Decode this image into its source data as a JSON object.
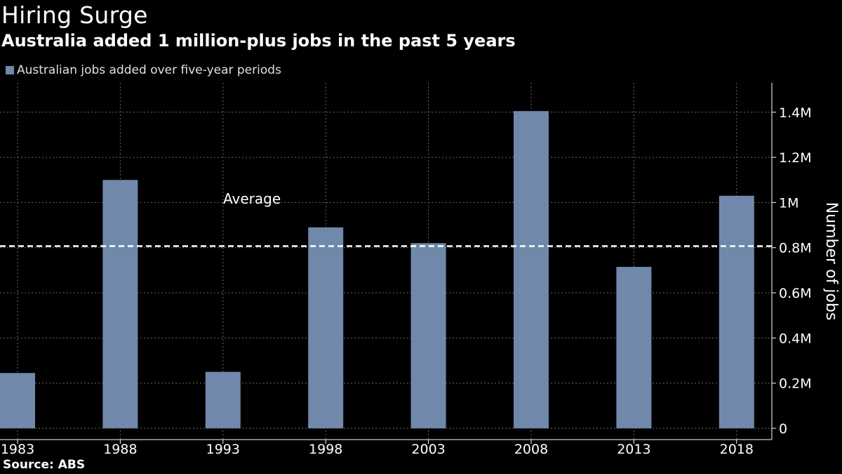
{
  "header": {
    "title": "Hiring Surge",
    "subtitle": "Australia added 1 million-plus jobs in the past 5 years"
  },
  "legend": {
    "label": "Australian jobs added over five-year periods",
    "color": "#7089ab"
  },
  "footer": {
    "source": "Source: ABS"
  },
  "chart_data": {
    "type": "bar",
    "title": "Hiring Surge",
    "subtitle": "Australia added 1 million-plus jobs in the past 5 years",
    "categories": [
      "1983",
      "1988",
      "1993",
      "1998",
      "2003",
      "2008",
      "2013",
      "2018"
    ],
    "series": [
      {
        "name": "Australian jobs added over five-year periods",
        "values": [
          245000,
          1100000,
          250000,
          890000,
          820000,
          1405000,
          715000,
          1030000
        ]
      }
    ],
    "ylabel": "Number of jobs",
    "xlabel": "",
    "ylim": [
      -50000,
      1530000
    ],
    "yticks": [
      0,
      200000,
      400000,
      600000,
      800000,
      1000000,
      1200000,
      1400000
    ],
    "ytick_labels": [
      "0",
      "0.2M",
      "0.4M",
      "0.6M",
      "0.8M",
      "1M",
      "1.2M",
      "1.4M"
    ],
    "average": {
      "label": "Average",
      "value": 807000
    },
    "grid": true,
    "legend_position": "top-left",
    "colors": {
      "bar": "#7089ab",
      "grid": "#6a6a6a",
      "axis": "#ffffff",
      "average": "#ffffff"
    }
  }
}
